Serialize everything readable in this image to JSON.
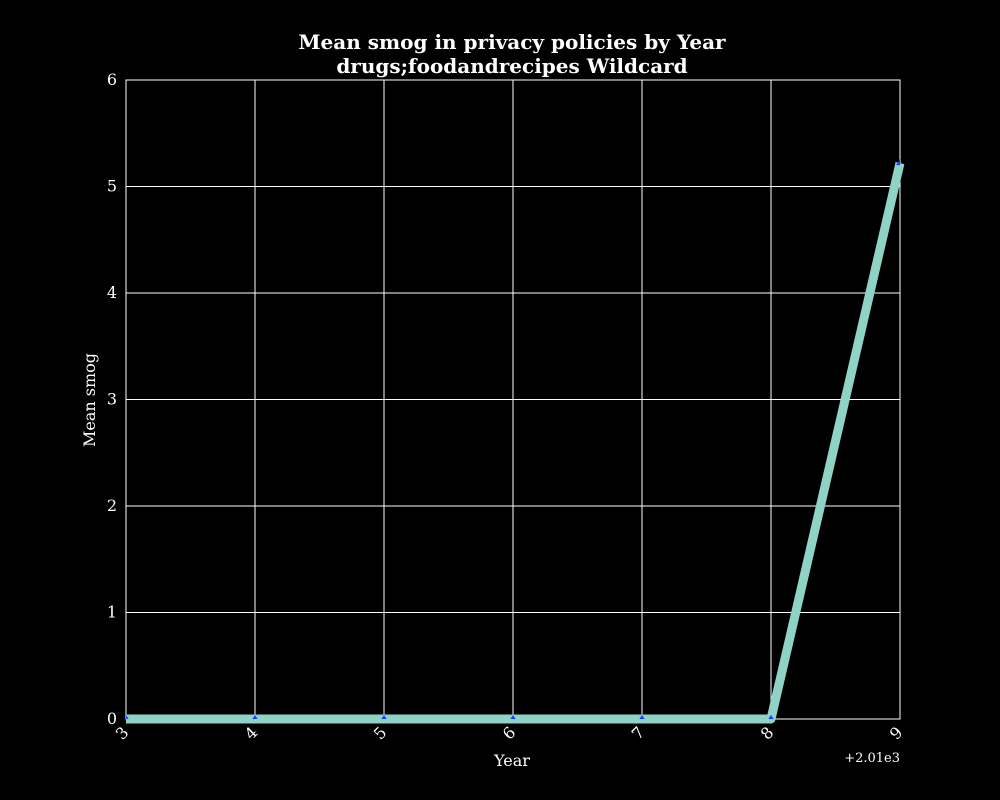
{
  "chart_data": {
    "type": "line",
    "title": "Mean smog in privacy policies by Year",
    "subtitle": "drugs;foodandrecipes Wildcard",
    "xlabel": "Year",
    "ylabel": "Mean smog",
    "x_offset_label": "+2.01e3",
    "x": [
      2013,
      2014,
      2015,
      2016,
      2017,
      2018,
      2019
    ],
    "series": [
      {
        "values": [
          0,
          0,
          0,
          0,
          0,
          0,
          5.22
        ]
      }
    ],
    "xlim": [
      2013,
      2019
    ],
    "ylim": [
      0,
      6
    ],
    "x_ticks": [
      2013,
      2014,
      2015,
      2016,
      2017,
      2018,
      2019
    ],
    "x_tick_labels": [
      "3",
      "4",
      "5",
      "6",
      "7",
      "8",
      "9"
    ],
    "y_ticks": [
      0,
      1,
      2,
      3,
      4,
      5,
      6
    ],
    "y_tick_labels": [
      "0",
      "1",
      "2",
      "3",
      "4",
      "5",
      "6"
    ],
    "grid": true,
    "colors": {
      "background": "#000000",
      "line": "#8fd3c6",
      "marker": "#1f3bff",
      "axes": "#ffffff",
      "grid": "#ffffff"
    }
  }
}
